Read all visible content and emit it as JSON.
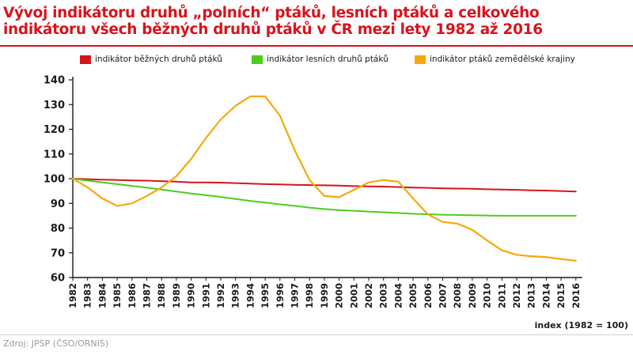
{
  "title_lines": [
    "Vývoj indikátoru druhů „polních“ ptáků, lesních ptáků a celkového",
    "indikátoru všech běžných druhů ptáků v ČR mezi lety 1982 až 2016"
  ],
  "source": "Zdroj: JPSP (ČSO/ORNIS)",
  "colors": {
    "title": "#d6141c",
    "axis": "#1a1a1a",
    "grid": "#d9d9d9"
  },
  "chart_data": {
    "type": "line",
    "xlabel": "",
    "ylabel": "",
    "note": "index (1982 = 100)",
    "ylim": [
      60,
      140
    ],
    "yticks": [
      60,
      70,
      80,
      90,
      100,
      110,
      120,
      130,
      140
    ],
    "grid": false,
    "legend_position": "top",
    "x": [
      "1982",
      "1983",
      "1984",
      "1985",
      "1986",
      "1987",
      "1988",
      "1989",
      "1990",
      "1991",
      "1992",
      "1993",
      "1994",
      "1995",
      "1996",
      "1997",
      "1998",
      "1999",
      "2000",
      "2001",
      "2002",
      "2003",
      "2004",
      "2005",
      "2006",
      "2007",
      "2008",
      "2009",
      "2010",
      "2011",
      "2012",
      "2013",
      "2014",
      "2015",
      "2016"
    ],
    "series": [
      {
        "name": "indikátor běžných druhů ptáků",
        "color": "#d6141c",
        "values": [
          100,
          99.8,
          99.6,
          99.5,
          99.3,
          99.2,
          99.0,
          98.8,
          98.5,
          98.5,
          98.4,
          98.2,
          98.0,
          97.8,
          97.7,
          97.5,
          97.4,
          97.3,
          97.2,
          97.0,
          96.9,
          96.8,
          96.6,
          96.4,
          96.3,
          96.1,
          96.0,
          95.9,
          95.7,
          95.6,
          95.5,
          95.3,
          95.2,
          95.0,
          94.8
        ]
      },
      {
        "name": "indikátor lesních druhů ptáků",
        "color": "#4ccd1c",
        "values": [
          100,
          99.2,
          98.5,
          97.8,
          97.1,
          96.4,
          95.6,
          94.8,
          94.0,
          93.3,
          92.6,
          91.8,
          91.0,
          90.3,
          89.6,
          89.0,
          88.3,
          87.7,
          87.3,
          87.0,
          86.7,
          86.4,
          86.1,
          85.8,
          85.6,
          85.4,
          85.3,
          85.2,
          85.1,
          85.0,
          85.0,
          85.0,
          85.0,
          85.0,
          85.0
        ]
      },
      {
        "name": "indikátor ptáků zemědělské krajiny",
        "color": "#f8a80a",
        "values": [
          100,
          96.5,
          92.0,
          89.0,
          90.0,
          93.0,
          96.5,
          101.0,
          108.0,
          116.5,
          124.0,
          129.5,
          133.3,
          133.3,
          125.5,
          111.5,
          99.5,
          93.0,
          92.5,
          95.5,
          98.5,
          99.5,
          98.8,
          92.0,
          85.5,
          82.5,
          81.8,
          79.3,
          75.0,
          71.0,
          69.2,
          68.6,
          68.3,
          67.5,
          66.8
        ]
      }
    ]
  }
}
